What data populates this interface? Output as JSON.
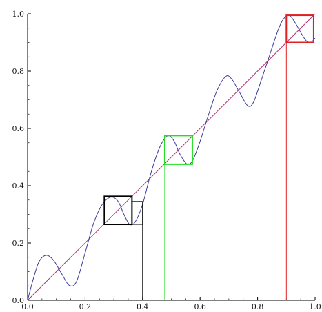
{
  "chart_data": {
    "type": "line",
    "title": "",
    "xlabel": "",
    "ylabel": "",
    "xlim": [
      0,
      1
    ],
    "ylim": [
      0,
      1
    ],
    "x_ticks": [
      0.0,
      0.2,
      0.4,
      0.6,
      0.8,
      1.0
    ],
    "y_ticks": [
      0.2,
      0.4,
      0.6,
      0.8,
      1.0
    ],
    "x_tick_labels": [
      "0.0",
      "0.2",
      "0.4",
      "0.6",
      "0.8",
      "1.0"
    ],
    "y_tick_labels": [
      "0.2",
      "0.4",
      "0.6",
      "0.8",
      "1.0"
    ],
    "origin_label": "0.0",
    "grid": false,
    "legend": "none",
    "series": [
      {
        "points": [
          [
            0.0,
            0.0
          ],
          [
            0.02,
            0.075
          ],
          [
            0.04,
            0.135
          ],
          [
            0.065,
            0.157
          ],
          [
            0.09,
            0.14
          ],
          [
            0.12,
            0.09
          ],
          [
            0.145,
            0.052
          ],
          [
            0.17,
            0.065
          ],
          [
            0.2,
            0.165
          ],
          [
            0.23,
            0.27
          ],
          [
            0.26,
            0.335
          ],
          [
            0.29,
            0.36
          ],
          [
            0.315,
            0.345
          ],
          [
            0.335,
            0.3
          ],
          [
            0.355,
            0.265
          ],
          [
            0.375,
            0.275
          ],
          [
            0.4,
            0.335
          ],
          [
            0.425,
            0.43
          ],
          [
            0.45,
            0.51
          ],
          [
            0.47,
            0.555
          ],
          [
            0.49,
            0.575
          ],
          [
            0.51,
            0.555
          ],
          [
            0.53,
            0.51
          ],
          [
            0.555,
            0.475
          ],
          [
            0.575,
            0.49
          ],
          [
            0.6,
            0.555
          ],
          [
            0.63,
            0.65
          ],
          [
            0.66,
            0.735
          ],
          [
            0.69,
            0.782
          ],
          [
            0.71,
            0.772
          ],
          [
            0.735,
            0.73
          ],
          [
            0.765,
            0.68
          ],
          [
            0.785,
            0.69
          ],
          [
            0.81,
            0.76
          ],
          [
            0.84,
            0.85
          ],
          [
            0.87,
            0.94
          ],
          [
            0.89,
            0.982
          ],
          [
            0.91,
            0.995
          ],
          [
            0.93,
            0.97
          ],
          [
            0.95,
            0.935
          ],
          [
            0.97,
            0.905
          ],
          [
            0.985,
            0.9
          ],
          [
            1.0,
            0.915
          ]
        ]
      },
      {
        "points": [
          [
            0,
            0
          ],
          [
            1,
            1
          ]
        ]
      }
    ],
    "boxes": [
      {
        "x0": 0.267,
        "x1": 0.363,
        "y0": 0.265,
        "y1": 0.363
      },
      {
        "x0": 0.477,
        "x1": 0.573,
        "y0": 0.475,
        "y1": 0.575
      },
      {
        "x0": 0.9,
        "x1": 0.995,
        "y0": 0.9,
        "y1": 0.995
      }
    ],
    "extra_box": {
      "x0": 0.363,
      "x1": 0.4,
      "y0": 0.265,
      "y1": 0.345
    },
    "vertical_lines": [
      {
        "x": 0.4,
        "y_top": 0.345
      },
      {
        "x": 0.477,
        "y_top": 0.575
      },
      {
        "x": 0.9,
        "y_top": 0.995
      }
    ],
    "colors": {
      "curve": "#3b3b9a",
      "diagonal": "#b03070",
      "box1": "#000000",
      "box2": "#22dd22",
      "box3": "#e02020",
      "axes": "#000000"
    }
  }
}
